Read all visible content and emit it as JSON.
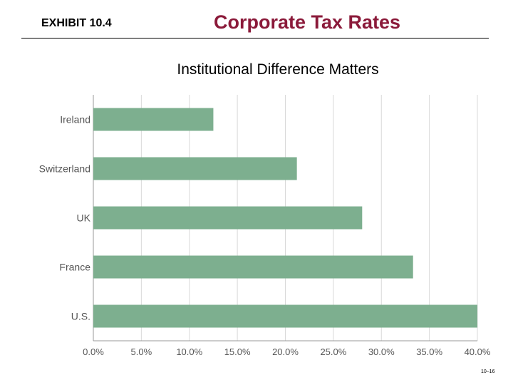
{
  "header": {
    "exhibit": "EXHIBIT 10.4",
    "title": "Corporate Tax Rates",
    "subtitle": "Institutional Difference Matters"
  },
  "footer": {
    "page": "10–16"
  },
  "chart_data": {
    "type": "bar",
    "orientation": "horizontal",
    "categories": [
      "Ireland",
      "Switzerland",
      "UK",
      "France",
      "U.S."
    ],
    "values": [
      12.5,
      21.2,
      28.0,
      33.3,
      40.0
    ],
    "xlim": [
      0,
      40
    ],
    "xticks": [
      "0.0%",
      "5.0%",
      "10.0%",
      "15.0%",
      "20.0%",
      "25.0%",
      "30.0%",
      "35.0%",
      "40.0%"
    ],
    "grid": true,
    "bar_color": "#7daf8f",
    "grid_color": "#d9d9d9",
    "axis_color": "#9a9a9a",
    "label_color": "#555555"
  }
}
